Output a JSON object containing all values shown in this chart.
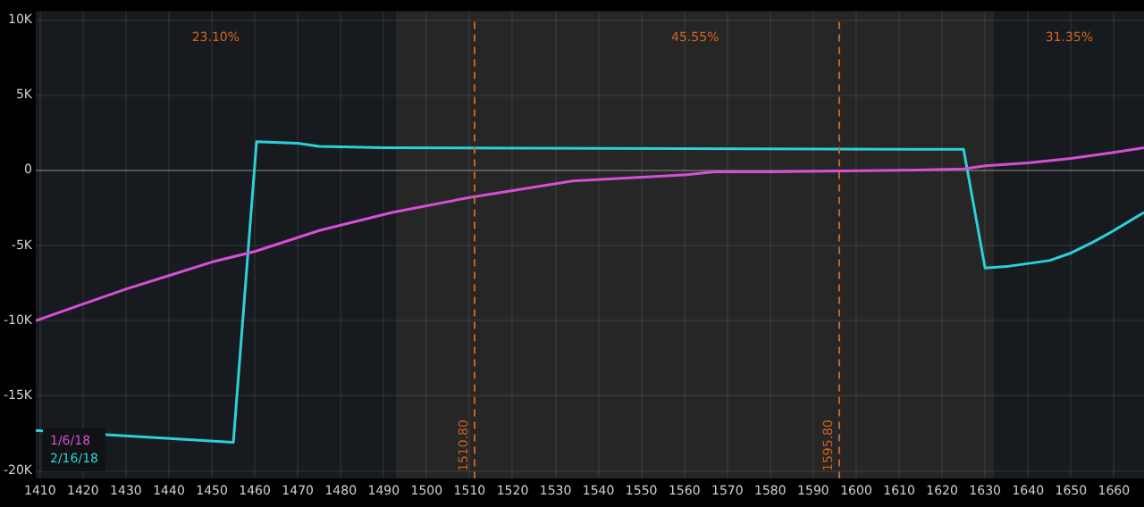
{
  "chart_data": {
    "type": "line",
    "xlim": [
      1409,
      1667
    ],
    "xticks": [
      1410,
      1420,
      1430,
      1440,
      1450,
      1460,
      1470,
      1480,
      1490,
      1500,
      1510,
      1520,
      1530,
      1540,
      1550,
      1560,
      1570,
      1580,
      1590,
      1600,
      1610,
      1620,
      1630,
      1640,
      1650,
      1660
    ],
    "ylim": [
      -20500,
      10600
    ],
    "yticks": [
      {
        "value": 10000,
        "label": "10K"
      },
      {
        "value": 5000,
        "label": "5K"
      },
      0,
      {
        "value": -5000,
        "label": "-5K"
      },
      {
        "value": -10000,
        "label": "-10K"
      },
      {
        "value": -15000,
        "label": "-15K"
      },
      {
        "value": -20000,
        "label": "-20K"
      }
    ],
    "grid": true,
    "legend": "bottom left",
    "marker": "none",
    "line_style": "solid",
    "series": [
      {
        "name": "1/6/18",
        "color": "#d64fd6",
        "x": [
          1409,
          1420,
          1430,
          1440,
          1450,
          1460,
          1475,
          1492,
          1510,
          1534,
          1560,
          1567,
          1580,
          1610,
          1625,
          1630,
          1640,
          1650,
          1660,
          1667
        ],
        "values": [
          -10000,
          -8900,
          -7900,
          -7000,
          -6100,
          -5400,
          -4000,
          -2800,
          -1800,
          -700,
          -300,
          -100,
          -100,
          0,
          100,
          300,
          500,
          800,
          1200,
          1500
        ]
      },
      {
        "name": "2/16/18",
        "color": "#2ad1d8",
        "x": [
          1409,
          1455,
          1460.4,
          1470,
          1475,
          1490,
          1625,
          1630,
          1635,
          1645,
          1650,
          1655,
          1660,
          1667
        ],
        "values": [
          -17300,
          -18100,
          1900,
          1800,
          1600,
          1500,
          1400,
          -6500,
          -6400,
          -6000,
          -5500,
          -4800,
          -4000,
          -2800
        ]
      }
    ],
    "bands": [
      {
        "axis": "x",
        "from": 1409,
        "to": 1492.8,
        "label": "23.10%",
        "color": "#171b1f"
      },
      {
        "axis": "x",
        "from": 1492.8,
        "to": 1632.2,
        "label": "45.55%",
        "color": "#262626"
      },
      {
        "axis": "x",
        "from": 1632.2,
        "to": 1667,
        "label": "31.35%",
        "color": "#171b1f"
      }
    ],
    "ref_lines": [
      {
        "axis": "x",
        "value": 1510.8,
        "label": "1510.80",
        "color": "#c8621e",
        "line_style": "dashed"
      },
      {
        "axis": "x",
        "value": 1595.8,
        "label": "1595.80",
        "color": "#c8621e",
        "line_style": "dashed"
      }
    ]
  }
}
